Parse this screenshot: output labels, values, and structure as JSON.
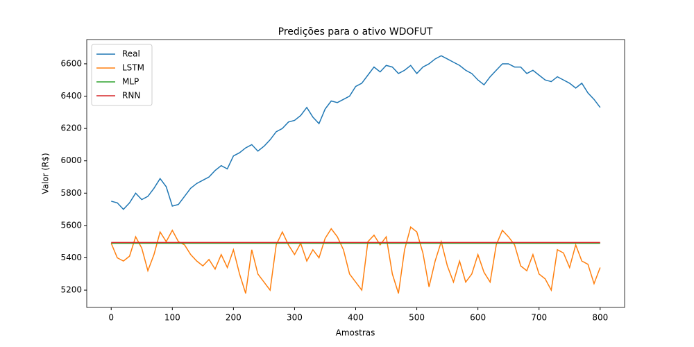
{
  "chart_data": {
    "type": "line",
    "title": "Predições para o ativo WDOFUT",
    "xlabel": "Amostras",
    "ylabel": "Valor (R$)",
    "x": [
      0,
      10,
      20,
      30,
      40,
      50,
      60,
      70,
      80,
      90,
      100,
      110,
      120,
      130,
      140,
      150,
      160,
      170,
      180,
      190,
      200,
      210,
      220,
      230,
      240,
      250,
      260,
      270,
      280,
      290,
      300,
      310,
      320,
      330,
      340,
      350,
      360,
      370,
      380,
      390,
      400,
      410,
      420,
      430,
      440,
      450,
      460,
      470,
      480,
      490,
      500,
      510,
      520,
      530,
      540,
      550,
      560,
      570,
      580,
      590,
      600,
      610,
      620,
      630,
      640,
      650,
      660,
      670,
      680,
      690,
      700,
      710,
      720,
      730,
      740,
      750,
      760,
      770,
      780,
      790,
      800
    ],
    "series": [
      {
        "name": "Real",
        "color": "#1f77b4",
        "values": [
          5750,
          5740,
          5700,
          5740,
          5800,
          5760,
          5780,
          5830,
          5890,
          5840,
          5720,
          5730,
          5780,
          5830,
          5860,
          5880,
          5900,
          5940,
          5970,
          5950,
          6030,
          6050,
          6080,
          6100,
          6060,
          6090,
          6130,
          6180,
          6200,
          6240,
          6250,
          6280,
          6330,
          6270,
          6230,
          6320,
          6370,
          6360,
          6380,
          6400,
          6460,
          6480,
          6530,
          6580,
          6550,
          6590,
          6580,
          6540,
          6560,
          6590,
          6540,
          6580,
          6600,
          6630,
          6650,
          6630,
          6610,
          6590,
          6560,
          6540,
          6500,
          6470,
          6520,
          6560,
          6600,
          6600,
          6580,
          6580,
          6540,
          6560,
          6530,
          6500,
          6490,
          6520,
          6500,
          6480,
          6450,
          6480,
          6420,
          6380,
          6330
        ]
      },
      {
        "name": "LSTM",
        "color": "#ff7f0e",
        "values": [
          5490,
          5400,
          5380,
          5410,
          5530,
          5460,
          5320,
          5420,
          5560,
          5500,
          5570,
          5500,
          5480,
          5420,
          5380,
          5350,
          5390,
          5330,
          5420,
          5340,
          5450,
          5300,
          5180,
          5450,
          5300,
          5250,
          5200,
          5480,
          5560,
          5480,
          5420,
          5490,
          5380,
          5450,
          5400,
          5520,
          5580,
          5530,
          5450,
          5300,
          5250,
          5200,
          5500,
          5540,
          5480,
          5530,
          5300,
          5180,
          5450,
          5590,
          5560,
          5430,
          5220,
          5380,
          5500,
          5350,
          5250,
          5380,
          5250,
          5300,
          5420,
          5310,
          5250,
          5480,
          5570,
          5530,
          5480,
          5350,
          5320,
          5420,
          5300,
          5270,
          5200,
          5450,
          5430,
          5340,
          5480,
          5380,
          5360,
          5240,
          5340
        ]
      },
      {
        "name": "MLP",
        "color": "#2ca02c",
        "x": [
          0,
          800
        ],
        "values": [
          5490,
          5490
        ]
      },
      {
        "name": "RNN",
        "color": "#d62728",
        "x": [
          0,
          800
        ],
        "values": [
          5495,
          5495
        ]
      }
    ],
    "xlim": [
      -40,
      840
    ],
    "ylim": [
      5093,
      6750
    ],
    "xticks": [
      0,
      100,
      200,
      300,
      400,
      500,
      600,
      700,
      800
    ],
    "yticks": [
      5200,
      5400,
      5600,
      5800,
      6000,
      6200,
      6400,
      6600
    ],
    "legend": "upper left"
  }
}
